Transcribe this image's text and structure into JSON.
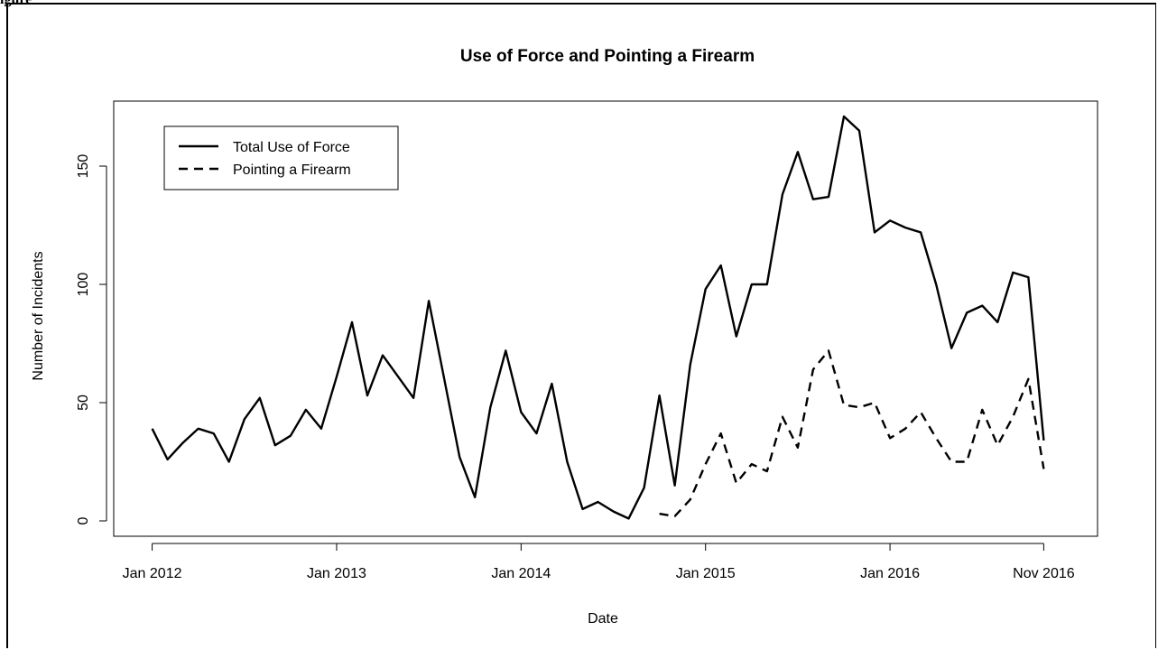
{
  "figure_label": "igure",
  "chart_data": {
    "type": "line",
    "title": "Use of Force and Pointing a Firearm",
    "xlabel": "Date",
    "ylabel": "Number of Incidents",
    "x_tick_labels": [
      "Jan 2012",
      "Jan 2013",
      "Jan 2014",
      "Jan 2015",
      "Jan 2016",
      "Nov 2016"
    ],
    "x_tick_months": [
      0,
      12,
      24,
      36,
      48,
      58
    ],
    "y_ticks": [
      0,
      50,
      100,
      150
    ],
    "ylim": [
      0,
      173
    ],
    "xlim_months": [
      -2.5,
      61.5
    ],
    "grid": false,
    "legend_position": "top-left",
    "legend_box": true,
    "series": [
      {
        "name": "Total Use of Force",
        "style": "solid",
        "color": "#000000",
        "x_months": [
          0,
          1,
          2,
          3,
          4,
          5,
          6,
          7,
          8,
          9,
          10,
          11,
          12,
          13,
          14,
          15,
          16,
          17,
          18,
          19,
          20,
          21,
          22,
          23,
          24,
          25,
          26,
          27,
          28,
          29,
          30,
          31,
          32,
          33,
          34,
          35,
          36,
          37,
          38,
          39,
          40,
          41,
          42,
          43,
          44,
          45,
          46,
          47,
          48,
          49,
          50,
          51,
          52,
          53,
          54,
          55,
          56,
          57,
          58
        ],
        "values": [
          39,
          26,
          33,
          39,
          37,
          25,
          43,
          52,
          32,
          36,
          47,
          39,
          61,
          84,
          53,
          70,
          61,
          52,
          93,
          60,
          27,
          10,
          48,
          72,
          46,
          37,
          58,
          25,
          5,
          8,
          4,
          1,
          14,
          53,
          15,
          66,
          98,
          108,
          78,
          100,
          100,
          138,
          156,
          136,
          137,
          171,
          165,
          122,
          127,
          124,
          122,
          100,
          73,
          88,
          91,
          84,
          105,
          103,
          34
        ]
      },
      {
        "name": "Pointing a Firearm",
        "style": "dashed",
        "color": "#000000",
        "x_months": [
          33,
          34,
          35,
          36,
          37,
          38,
          39,
          40,
          41,
          42,
          43,
          44,
          45,
          46,
          47,
          48,
          49,
          50,
          51,
          52,
          53,
          54,
          55,
          56,
          57,
          58
        ],
        "values": [
          3,
          2,
          9,
          24,
          37,
          16,
          24,
          21,
          44,
          31,
          64,
          72,
          49,
          48,
          50,
          35,
          39,
          46,
          35,
          25,
          25,
          47,
          32,
          44,
          60,
          22
        ]
      }
    ]
  }
}
